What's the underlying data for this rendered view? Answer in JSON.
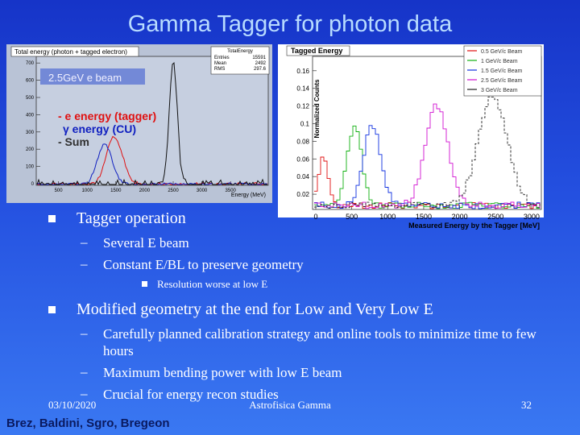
{
  "title": "Gamma Tagger for photon data",
  "left_plot": {
    "title": "Total energy (photon + tagged electron)",
    "stats": {
      "name": "TotalEnergy",
      "rows": [
        [
          "Entries",
          "15591"
        ],
        [
          "Mean",
          "2492"
        ],
        [
          "RMS",
          "297.6"
        ]
      ]
    },
    "yticks": [
      0,
      100,
      200,
      300,
      400,
      500,
      600,
      700
    ],
    "xticks": [
      500,
      1000,
      1500,
      2000,
      2500,
      3000,
      3500
    ],
    "xlabel": "Energy (MeV)",
    "annotations": [
      "2.5GeV e beam",
      "- e energy (tagger)",
      "γ energy (CU)",
      "- Sum"
    ]
  },
  "right_plot": {
    "title": "Tagged Energy",
    "ylabel": "Normalized Counts",
    "yticks": [
      0.02,
      0.04,
      0.06,
      0.08,
      0.1,
      0.12,
      0.14,
      0.16
    ],
    "xticks": [
      0,
      500,
      1000,
      1500,
      2000,
      2500,
      3000
    ],
    "xlabel": "Measured Energy by the Tagger [MeV]",
    "legend": [
      {
        "name": "0.5 GeV/c Beam",
        "color": "#e01010"
      },
      {
        "name": "1 GeV/c Beam",
        "color": "#10b010"
      },
      {
        "name": "1.5 GeV/c Beam",
        "color": "#1030e0"
      },
      {
        "name": "2.5 GeV/c Beam",
        "color": "#d010d0"
      },
      {
        "name": "3 GeV/c Beam",
        "color": "#202020"
      }
    ]
  },
  "bullets": [
    {
      "text": "Tagger operation",
      "sub": [
        {
          "text": "Several E beam"
        },
        {
          "text": "Constant E/BL to preserve geometry",
          "sub": [
            "Resolution worse at low E"
          ]
        }
      ]
    },
    {
      "text": "Modified geometry at the end for Low and Very Low E",
      "sub": [
        {
          "text": "Carefully planned calibration strategy and online tools to minimize time to few hours"
        },
        {
          "text": "Maximum bending power with low E beam"
        },
        {
          "text": "Crucial for energy recon studies"
        }
      ]
    }
  ],
  "footer": {
    "date": "03/10/2020",
    "center": "Astrofisica Gamma",
    "page": "32",
    "authors": "Brez, Baldini, Sgro, Bregeon"
  }
}
